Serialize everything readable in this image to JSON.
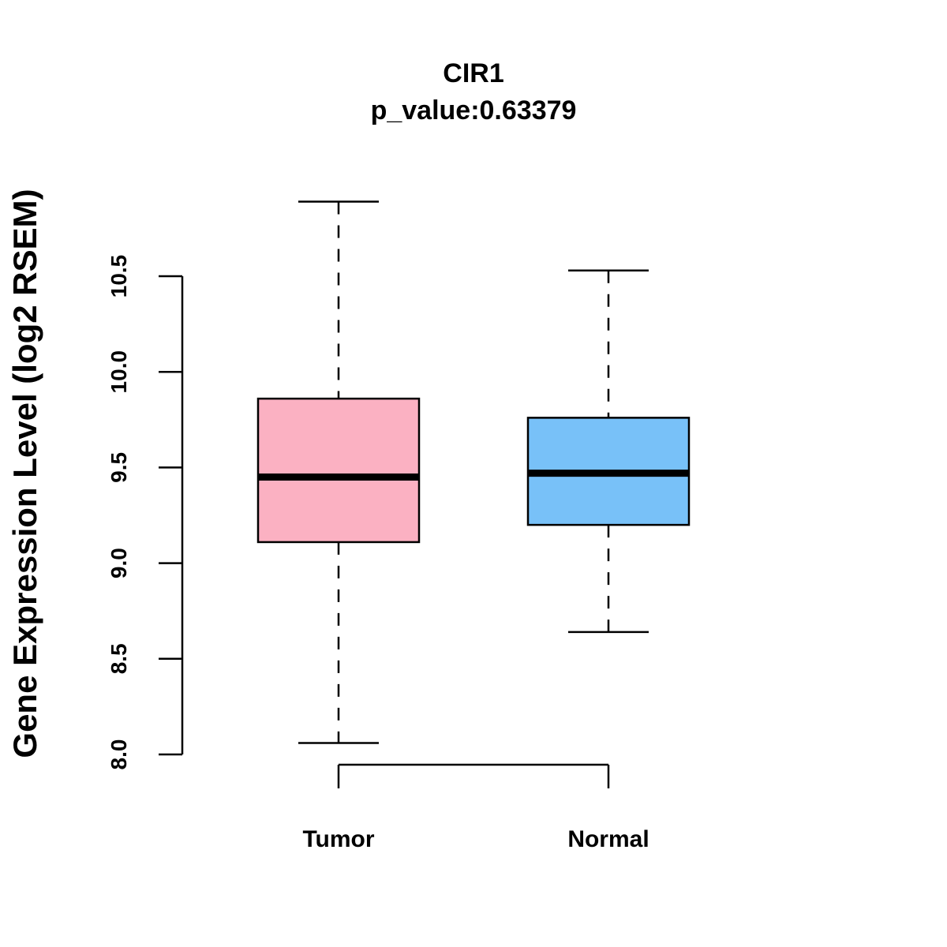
{
  "chart_data": {
    "type": "boxplot",
    "title": "CIR1",
    "subtitle": "p_value:0.63379",
    "xlabel": "",
    "ylabel": "Gene Expression Level (log2 RSEM)",
    "categories": [
      "Tumor",
      "Normal"
    ],
    "yticks": [
      8.0,
      8.5,
      9.0,
      9.5,
      10.0,
      10.5
    ],
    "ytick_labels": [
      "8.0",
      "8.5",
      "9.0",
      "9.5",
      "10.0",
      "10.5"
    ],
    "ylim": [
      8.0,
      10.5
    ],
    "series": [
      {
        "name": "Tumor",
        "whisker_low": 8.06,
        "q1": 9.11,
        "median": 9.45,
        "q3": 9.86,
        "whisker_high": 10.89,
        "color": "#FBB1C2"
      },
      {
        "name": "Normal",
        "whisker_low": 8.64,
        "q1": 9.2,
        "median": 9.47,
        "q3": 9.76,
        "whisker_high": 10.53,
        "color": "#78C1F8"
      }
    ]
  }
}
